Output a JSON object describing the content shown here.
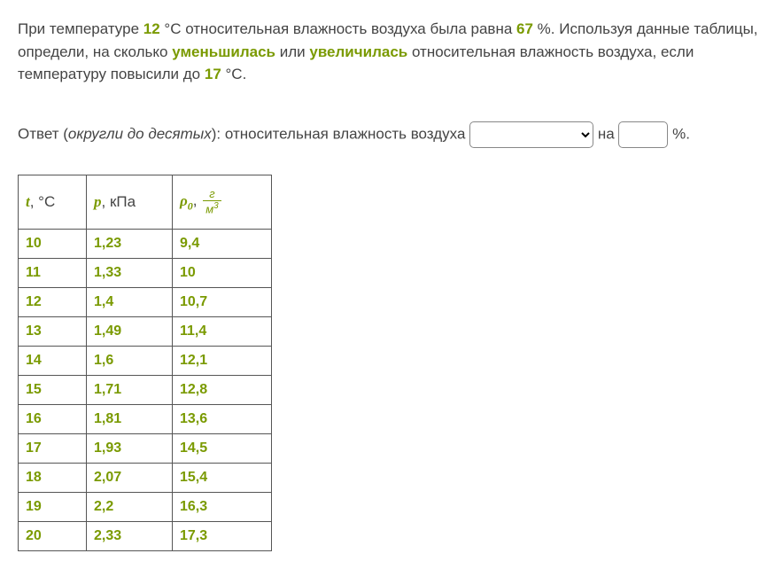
{
  "problem": {
    "pre1": "При температуре ",
    "t1": "12",
    "post1": " °C относительная влажность воздуха была равна ",
    "hum": "67",
    "post2": " %. Используя данные таблицы, определи, на сколько ",
    "decreased": "уменьшилась",
    "or": " или ",
    "increased": "увеличилась",
    "post3": " относительная влажность воздуха, если температуру повысили до ",
    "t2": "17",
    "post4": " °C."
  },
  "answer": {
    "label": "Ответ (",
    "hint": "округли до десятых",
    "post": "): относительная влажность воздуха ",
    "na": " на ",
    "pct": " %."
  },
  "table": {
    "headers": {
      "t_var": "t",
      "t_unit": ", °C",
      "p_var": "p",
      "p_unit": ", кПа",
      "rho_var": "ρ",
      "rho_sub": "0",
      "rho_comma": ", ",
      "frac_num": "г",
      "frac_den_base": "м",
      "frac_den_exp": "3"
    },
    "rows": [
      {
        "t": "10",
        "p": "1,23",
        "rho": "9,4"
      },
      {
        "t": "11",
        "p": "1,33",
        "rho": "10"
      },
      {
        "t": "12",
        "p": "1,4",
        "rho": "10,7"
      },
      {
        "t": "13",
        "p": "1,49",
        "rho": "11,4"
      },
      {
        "t": "14",
        "p": "1,6",
        "rho": "12,1"
      },
      {
        "t": "15",
        "p": "1,71",
        "rho": "12,8"
      },
      {
        "t": "16",
        "p": "1,81",
        "rho": "13,6"
      },
      {
        "t": "17",
        "p": "1,93",
        "rho": "14,5"
      },
      {
        "t": "18",
        "p": "2,07",
        "rho": "15,4"
      },
      {
        "t": "19",
        "p": "2,2",
        "rho": "16,3"
      },
      {
        "t": "20",
        "p": "2,33",
        "rho": "17,3"
      }
    ]
  }
}
